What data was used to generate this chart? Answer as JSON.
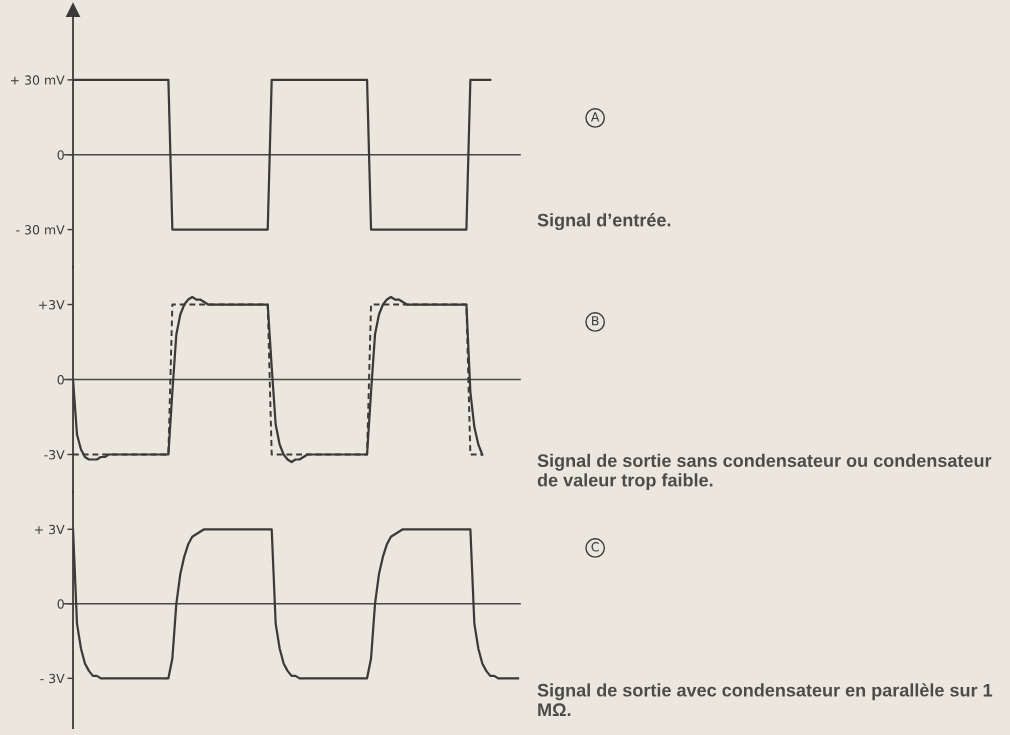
{
  "chart_data": [
    {
      "type": "line",
      "tick_labels": "y",
      "categories": [
        null,
        null,
        null,
        null,
        null,
        null,
        null,
        null,
        null,
        null,
        null,
        null,
        null,
        null,
        null,
        null,
        null,
        null,
        null,
        null,
        null,
        null,
        null,
        null,
        null,
        null,
        null,
        null,
        null,
        null,
        null,
        null,
        null,
        null,
        null,
        null,
        null,
        null,
        null,
        null,
        null,
        null,
        null,
        null,
        null,
        null,
        null,
        null,
        null,
        null,
        null,
        null,
        null,
        null,
        null,
        null,
        null,
        null,
        null,
        null,
        null,
        null,
        null,
        null,
        null,
        null,
        null,
        null,
        null,
        null,
        null,
        null,
        null,
        null,
        null,
        null,
        null,
        null,
        null,
        null,
        null,
        null,
        null,
        null,
        null,
        null,
        null,
        null,
        null,
        null,
        null,
        null,
        null,
        null,
        null,
        null,
        null,
        null,
        null,
        null,
        null,
        null,
        null,
        null,
        null,
        null,
        null,
        null,
        null,
        null,
        null,
        null,
        null
      ],
      "ylim": [
        -45,
        58
      ],
      "yticks": [
        {
          "value": 30,
          "label": "+ 30 mV"
        },
        0,
        {
          "value": -30,
          "label": "- 30 mV"
        }
      ],
      "series": [
        {
          "color": "#3b3a38",
          "values": [
            30,
            30,
            30,
            30,
            30,
            30,
            30,
            30,
            30,
            30,
            30,
            30,
            30,
            30,
            30,
            30,
            30,
            30,
            30,
            30,
            30,
            30,
            30,
            30,
            30,
            -30,
            -30,
            -30,
            -30,
            -30,
            -30,
            -30,
            -30,
            -30,
            -30,
            -30,
            -30,
            -30,
            -30,
            -30,
            -30,
            -30,
            -30,
            -30,
            -30,
            -30,
            -30,
            -30,
            -30,
            -30,
            30,
            30,
            30,
            30,
            30,
            30,
            30,
            30,
            30,
            30,
            30,
            30,
            30,
            30,
            30,
            30,
            30,
            30,
            30,
            30,
            30,
            30,
            30,
            30,
            30,
            -30,
            -30,
            -30,
            -30,
            -30,
            -30,
            -30,
            -30,
            -30,
            -30,
            -30,
            -30,
            -30,
            -30,
            -30,
            -30,
            -30,
            -30,
            -30,
            -30,
            -30,
            -30,
            -30,
            -30,
            -30,
            30,
            30,
            30,
            30,
            30,
            30,
            null,
            null,
            null,
            null,
            null,
            null,
            null
          ]
        }
      ],
      "ref_lines": [
        {
          "axis": "y",
          "value": 0,
          "color": "#4a4846"
        }
      ],
      "annotations": [
        "A",
        "Signal d’entrée."
      ]
    },
    {
      "type": "line",
      "tick_labels": "y",
      "categories": [
        null,
        null,
        null,
        null,
        null,
        null,
        null,
        null,
        null,
        null,
        null,
        null,
        null,
        null,
        null,
        null,
        null,
        null,
        null,
        null,
        null,
        null,
        null,
        null,
        null,
        null,
        null,
        null,
        null,
        null,
        null,
        null,
        null,
        null,
        null,
        null,
        null,
        null,
        null,
        null,
        null,
        null,
        null,
        null,
        null,
        null,
        null,
        null,
        null,
        null,
        null,
        null,
        null,
        null,
        null,
        null,
        null,
        null,
        null,
        null,
        null,
        null,
        null,
        null,
        null,
        null,
        null,
        null,
        null,
        null,
        null,
        null,
        null,
        null,
        null,
        null,
        null,
        null,
        null,
        null,
        null,
        null,
        null,
        null,
        null,
        null,
        null,
        null,
        null,
        null,
        null,
        null,
        null,
        null,
        null,
        null,
        null,
        null,
        null,
        null,
        null,
        null,
        null,
        null,
        null,
        null,
        null,
        null,
        null,
        null,
        null,
        null,
        null
      ],
      "ylim": [
        -4.5,
        4.5
      ],
      "yticks": [
        {
          "value": 3,
          "label": "+3V"
        },
        0,
        {
          "value": -3,
          "label": "-3V"
        }
      ],
      "series": [
        {
          "color": "#3b3a38",
          "line_style": "dashed",
          "values": [
            -3,
            -3,
            -3,
            -3,
            -3,
            -3,
            -3,
            -3,
            -3,
            -3,
            -3,
            -3,
            -3,
            -3,
            -3,
            -3,
            -3,
            -3,
            -3,
            -3,
            -3,
            -3,
            -3,
            -3,
            -3,
            3,
            3,
            3,
            3,
            3,
            3,
            3,
            3,
            3,
            3,
            3,
            3,
            3,
            3,
            3,
            3,
            3,
            3,
            3,
            3,
            3,
            3,
            3,
            3,
            3,
            -3,
            -3,
            -3,
            -3,
            -3,
            -3,
            -3,
            -3,
            -3,
            -3,
            -3,
            -3,
            -3,
            -3,
            -3,
            -3,
            -3,
            -3,
            -3,
            -3,
            -3,
            -3,
            -3,
            -3,
            -3,
            3,
            3,
            3,
            3,
            3,
            3,
            3,
            3,
            3,
            3,
            3,
            3,
            3,
            3,
            3,
            3,
            3,
            3,
            3,
            3,
            3,
            3,
            3,
            3,
            3,
            -3,
            -3,
            -3,
            -3,
            null,
            null,
            null,
            null,
            null,
            null,
            null,
            null,
            null
          ]
        },
        {
          "color": "#3b3a38",
          "line_style": "solid",
          "values": [
            0,
            -2.2,
            -2.8,
            -3.1,
            -3.2,
            -3.2,
            -3.2,
            -3.1,
            -3.1,
            -3,
            -3,
            -3,
            -3,
            -3,
            -3,
            -3,
            -3,
            -3,
            -3,
            -3,
            -3,
            -3,
            -3,
            -3,
            -3,
            -0.5,
            1.8,
            2.6,
            3,
            3.2,
            3.3,
            3.2,
            3.2,
            3.1,
            3,
            3,
            3,
            3,
            3,
            3,
            3,
            3,
            3,
            3,
            3,
            3,
            3,
            3,
            3,
            3,
            0.5,
            -1.8,
            -2.6,
            -3,
            -3.2,
            -3.3,
            -3.2,
            -3.2,
            -3.1,
            -3,
            -3,
            -3,
            -3,
            -3,
            -3,
            -3,
            -3,
            -3,
            -3,
            -3,
            -3,
            -3,
            -3,
            -3,
            -3,
            -0.5,
            1.8,
            2.6,
            3,
            3.2,
            3.3,
            3.2,
            3.2,
            3.1,
            3,
            3,
            3,
            3,
            3,
            3,
            3,
            3,
            3,
            3,
            3,
            3,
            3,
            3,
            3,
            3,
            -0.5,
            -1.9,
            -2.6,
            -3,
            null,
            null,
            null,
            null,
            null,
            null,
            null,
            null,
            null
          ]
        }
      ],
      "ref_lines": [
        {
          "axis": "y",
          "value": 0,
          "color": "#4a4846"
        }
      ],
      "annotations": [
        "B",
        "Signal de sortie sans condensateur ou condensateur de valeur trop faible."
      ]
    },
    {
      "type": "line",
      "tick_labels": "y",
      "categories": [
        null,
        null,
        null,
        null,
        null,
        null,
        null,
        null,
        null,
        null,
        null,
        null,
        null,
        null,
        null,
        null,
        null,
        null,
        null,
        null,
        null,
        null,
        null,
        null,
        null,
        null,
        null,
        null,
        null,
        null,
        null,
        null,
        null,
        null,
        null,
        null,
        null,
        null,
        null,
        null,
        null,
        null,
        null,
        null,
        null,
        null,
        null,
        null,
        null,
        null,
        null,
        null,
        null,
        null,
        null,
        null,
        null,
        null,
        null,
        null,
        null,
        null,
        null,
        null,
        null,
        null,
        null,
        null,
        null,
        null,
        null,
        null,
        null,
        null,
        null,
        null,
        null,
        null,
        null,
        null,
        null,
        null,
        null,
        null,
        null,
        null,
        null,
        null,
        null,
        null,
        null,
        null,
        null,
        null,
        null,
        null,
        null,
        null,
        null,
        null,
        null,
        null,
        null,
        null,
        null,
        null,
        null,
        null,
        null,
        null,
        null,
        null,
        null
      ],
      "ylim": [
        -5,
        4.5
      ],
      "yticks": [
        {
          "value": 3,
          "label": "+ 3V"
        },
        0,
        {
          "value": -3,
          "label": "- 3V"
        }
      ],
      "series": [
        {
          "color": "#3b3a38",
          "values": [
            3,
            -0.8,
            -1.8,
            -2.4,
            -2.7,
            -2.9,
            -2.9,
            -3,
            -3,
            -3,
            -3,
            -3,
            -3,
            -3,
            -3,
            -3,
            -3,
            -3,
            -3,
            -3,
            -3,
            -3,
            -3,
            -3,
            -3,
            -2.2,
            0,
            1.2,
            1.9,
            2.4,
            2.7,
            2.8,
            2.9,
            3,
            3,
            3,
            3,
            3,
            3,
            3,
            3,
            3,
            3,
            3,
            3,
            3,
            3,
            3,
            3,
            3,
            3,
            -0.8,
            -1.8,
            -2.4,
            -2.7,
            -2.9,
            -2.9,
            -3,
            -3,
            -3,
            -3,
            -3,
            -3,
            -3,
            -3,
            -3,
            -3,
            -3,
            -3,
            -3,
            -3,
            -3,
            -3,
            -3,
            -3,
            -2.2,
            0,
            1.2,
            1.9,
            2.4,
            2.7,
            2.8,
            2.9,
            3,
            3,
            3,
            3,
            3,
            3,
            3,
            3,
            3,
            3,
            3,
            3,
            3,
            3,
            3,
            3,
            3,
            3,
            -0.8,
            -1.8,
            -2.4,
            -2.7,
            -2.9,
            -2.9,
            -3,
            -3,
            -3,
            -3,
            -3,
            -3
          ]
        }
      ],
      "ref_lines": [
        {
          "axis": "y",
          "value": 0,
          "color": "#4a4846"
        }
      ],
      "annotations": [
        "C",
        "Signal de sortie avec condensateur en parallèle sur 1 MΩ."
      ]
    }
  ]
}
